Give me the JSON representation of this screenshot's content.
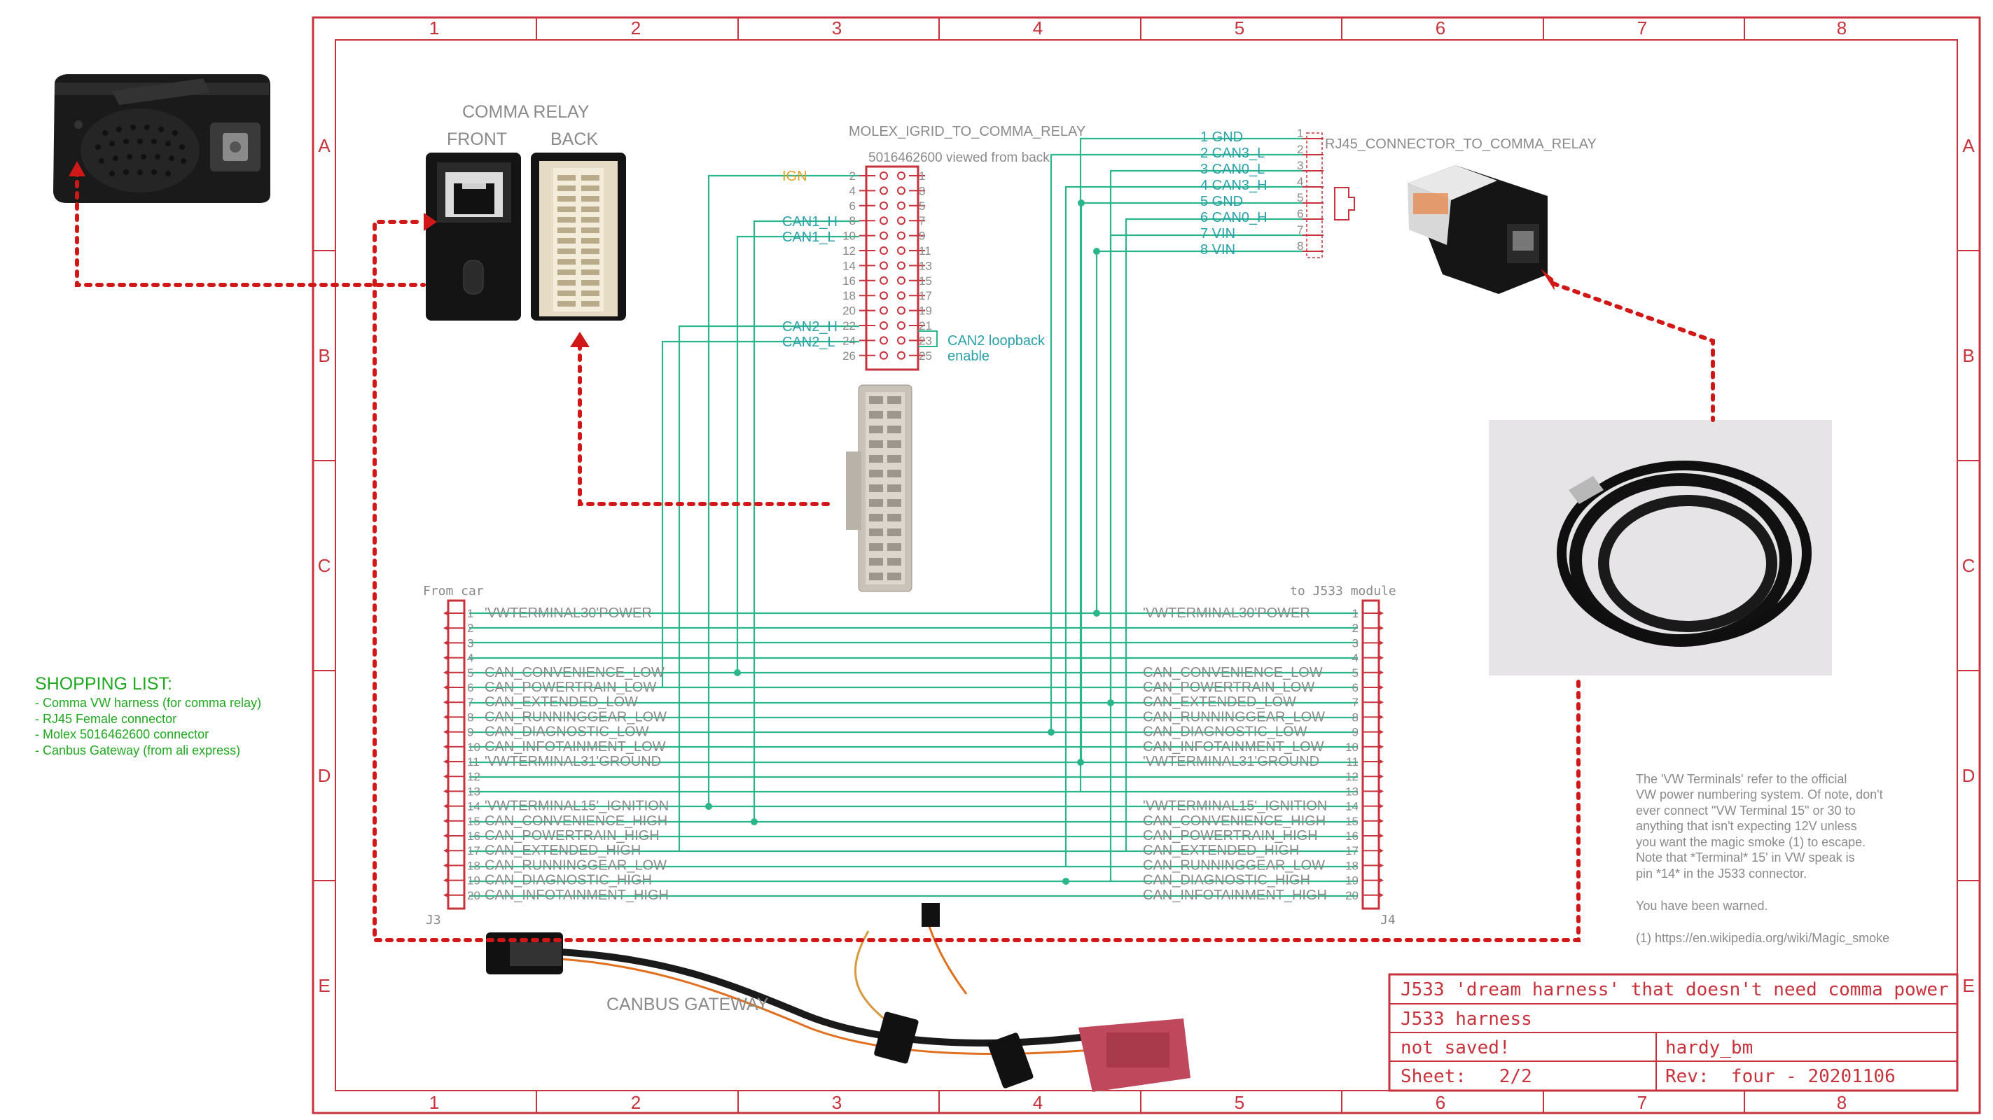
{
  "frame": {
    "columns": [
      "1",
      "2",
      "3",
      "4",
      "5",
      "6",
      "7",
      "8"
    ],
    "rows": [
      "A",
      "B",
      "C",
      "D",
      "E"
    ]
  },
  "comma_relay": {
    "title": "COMMA RELAY",
    "front_label": "FRONT",
    "back_label": "BACK"
  },
  "molex": {
    "name": "MOLEX_IGRID_TO_COMMA_RELAY",
    "part": "5016462600 viewed from back",
    "left_pins": [
      "2",
      "4",
      "6",
      "8",
      "10",
      "12",
      "14",
      "16",
      "18",
      "20",
      "22",
      "24",
      "26"
    ],
    "right_pins": [
      "1",
      "3",
      "5",
      "7",
      "9",
      "11",
      "13",
      "15",
      "17",
      "19",
      "21",
      "23",
      "25"
    ],
    "ign_label": "IGN",
    "can1h_label": "CAN1_H",
    "can1l_label": "CAN1_L",
    "can2h_label": "CAN2_H",
    "can2l_label": "CAN2_L",
    "loopback_label": "CAN2 loopback",
    "enable_label": "enable"
  },
  "rj45": {
    "name": "RJ45_CONNECTOR_TO_COMMA_RELAY",
    "pins": [
      "1",
      "2",
      "3",
      "4",
      "5",
      "6",
      "7",
      "8"
    ],
    "signals": [
      "1 GND",
      "2 CAN3_L",
      "3 CAN0_L",
      "4 CAN3_H",
      "5 GND",
      "6 CAN0_H",
      "7 VIN",
      "8 VIN"
    ]
  },
  "j3": {
    "header": "From car",
    "ref": "J3",
    "pins": [
      "1",
      "2",
      "3",
      "4",
      "5",
      "6",
      "7",
      "8",
      "9",
      "10",
      "11",
      "12",
      "13",
      "14",
      "15",
      "16",
      "17",
      "18",
      "19",
      "20"
    ],
    "labels": [
      "'VWTERMINAL30'POWER",
      "",
      "",
      "",
      "CAN_CONVENIENCE_LOW",
      "CAN_POWERTRAIN_LOW",
      "CAN_EXTENDED_LOW",
      "CAN_RUNNINGGEAR_LOW",
      "CAN_DIAGNOSTIC_LOW",
      "CAN_INFOTAINMENT_LOW",
      "'VWTERMINAL31'GROUND",
      "",
      "",
      "'VWTERMINAL15'_IGNITION",
      "CAN_CONVENIENCE_HIGH",
      "CAN_POWERTRAIN_HIGH",
      "CAN_EXTENDED_HIGH",
      "CAN_RUNNINGGEAR_LOW",
      "CAN_DIAGNOSTIC_HIGH",
      "CAN_INFOTAINMENT_HIGH"
    ]
  },
  "j4": {
    "header": "to J533 module",
    "ref": "J4",
    "pins": [
      "1",
      "2",
      "3",
      "4",
      "5",
      "6",
      "7",
      "8",
      "9",
      "10",
      "11",
      "12",
      "13",
      "14",
      "15",
      "16",
      "17",
      "18",
      "19",
      "20"
    ],
    "labels": [
      "'VWTERMINAL30'POWER",
      "",
      "",
      "",
      "CAN_CONVENIENCE_LOW",
      "CAN_POWERTRAIN_LOW",
      "CAN_EXTENDED_LOW",
      "CAN_RUNNINGGEAR_LOW",
      "CAN_DIAGNOSTIC_LOW",
      "CAN_INFOTAINMENT_LOW",
      "'VWTERMINAL31'GROUND",
      "",
      "",
      "'VWTERMINAL15'_IGNITION",
      "CAN_CONVENIENCE_HIGH",
      "CAN_POWERTRAIN_HIGH",
      "CAN_EXTENDED_HIGH",
      "CAN_RUNNINGGEAR_LOW",
      "CAN_DIAGNOSTIC_HIGH",
      "CAN_INFOTAINMENT_HIGH"
    ]
  },
  "shopping": {
    "title": "SHOPPING LIST:",
    "items": [
      "- Comma VW harness (for comma relay)",
      "- RJ45 Female connector",
      "- Molex 5016462600 connector",
      "- Canbus Gateway (from ali express)"
    ]
  },
  "canbus_gateway_label": "CANBUS GATEWAY",
  "note": {
    "lines": [
      "The 'VW Terminals' refer to the official",
      "VW power numbering system. Of note, don't",
      "ever connect \"VW Terminal 15\" or 30 to",
      "anything that isn't expecting 12V unless",
      "you want the magic smoke (1) to escape.",
      "Note that *Terminal* 15' in VW speak is",
      "pin *14* in the J533 connector."
    ],
    "warned": "You have been warned.",
    "footnote": "(1) https://en.wikipedia.org/wiki/Magic_smoke"
  },
  "title_block": {
    "title": "J533 'dream harness' that doesn't need comma power",
    "subtitle": "J533 harness",
    "status": "not saved!",
    "author": "hardy_bm",
    "sheet": "Sheet:   2/2",
    "rev": "Rev:  four - 20201106"
  },
  "colors": {
    "frame": "#c8323c",
    "wire": "#2ab58b",
    "can_label": "#2aa0a8",
    "ign_label": "#e0a020",
    "shopping": "#1fa81f",
    "dotted": "#d01818"
  }
}
